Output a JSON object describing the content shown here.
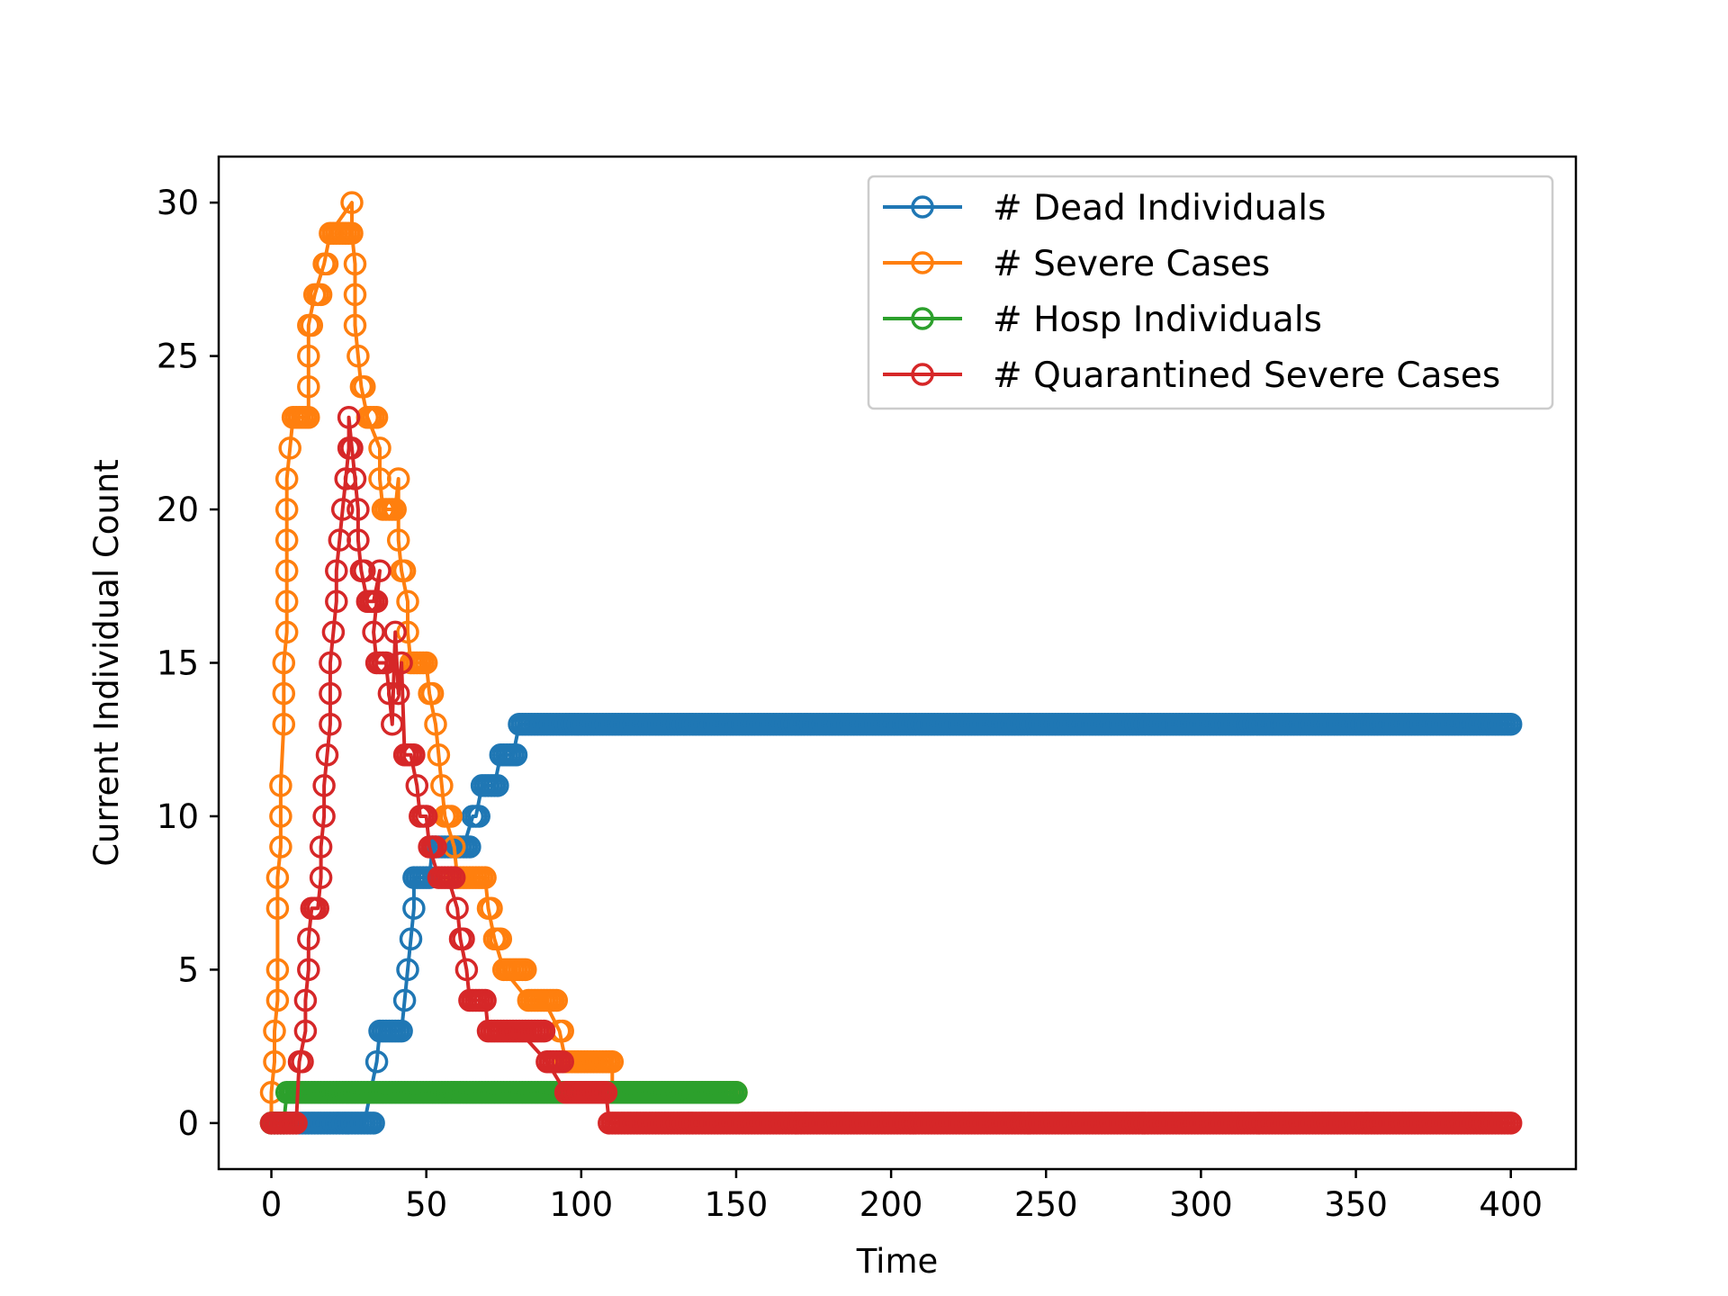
{
  "chart_data": {
    "type": "line",
    "xlabel": "Time",
    "ylabel": "Current Individual Count",
    "xlim": [
      -17,
      421
    ],
    "ylim": [
      -1.5,
      31.5
    ],
    "xticks": [
      0,
      50,
      100,
      150,
      200,
      250,
      300,
      350,
      400
    ],
    "yticks": [
      0,
      5,
      10,
      15,
      20,
      25,
      30
    ],
    "legend_position": "top-right",
    "marker": "open-circle",
    "series": [
      {
        "name": "# Dead Individuals",
        "color": "#1f77b4",
        "points": [
          [
            0,
            0
          ],
          [
            30,
            0
          ],
          [
            34,
            2
          ],
          [
            35,
            3
          ],
          [
            42,
            3
          ],
          [
            43,
            4
          ],
          [
            44,
            5
          ],
          [
            45,
            6
          ],
          [
            46,
            7
          ],
          [
            46,
            8
          ],
          [
            48,
            8
          ],
          [
            51,
            8
          ],
          [
            52,
            9
          ],
          [
            56,
            9
          ],
          [
            58,
            9
          ],
          [
            62,
            9
          ],
          [
            65,
            10
          ],
          [
            66,
            10
          ],
          [
            68,
            11
          ],
          [
            72,
            11
          ],
          [
            74,
            12
          ],
          [
            78,
            12
          ],
          [
            80,
            13
          ],
          [
            400,
            13
          ]
        ]
      },
      {
        "name": "# Severe Cases",
        "color": "#ff7f0e",
        "points": [
          [
            0,
            0
          ],
          [
            0,
            1
          ],
          [
            1,
            2
          ],
          [
            1,
            3
          ],
          [
            2,
            4
          ],
          [
            2,
            5
          ],
          [
            2,
            7
          ],
          [
            2,
            8
          ],
          [
            3,
            9
          ],
          [
            3,
            10
          ],
          [
            3,
            11
          ],
          [
            4,
            13
          ],
          [
            4,
            14
          ],
          [
            4,
            15
          ],
          [
            5,
            16
          ],
          [
            5,
            17
          ],
          [
            5,
            18
          ],
          [
            5,
            19
          ],
          [
            5,
            20
          ],
          [
            5,
            21
          ],
          [
            6,
            22
          ],
          [
            7,
            23
          ],
          [
            12,
            23
          ],
          [
            12,
            24
          ],
          [
            12,
            25
          ],
          [
            12,
            26
          ],
          [
            14,
            27
          ],
          [
            17,
            28
          ],
          [
            19,
            29
          ],
          [
            26,
            30
          ],
          [
            26,
            29
          ],
          [
            27,
            28
          ],
          [
            27,
            27
          ],
          [
            27,
            26
          ],
          [
            28,
            25
          ],
          [
            29,
            24
          ],
          [
            31,
            23
          ],
          [
            35,
            22
          ],
          [
            35,
            21
          ],
          [
            36,
            20
          ],
          [
            40,
            20
          ],
          [
            41,
            21
          ],
          [
            41,
            19
          ],
          [
            42,
            18
          ],
          [
            44,
            17
          ],
          [
            44,
            16
          ],
          [
            45,
            15
          ],
          [
            50,
            15
          ],
          [
            51,
            14
          ],
          [
            53,
            13
          ],
          [
            54,
            12
          ],
          [
            55,
            11
          ],
          [
            56,
            10
          ],
          [
            59,
            9
          ],
          [
            60,
            8
          ],
          [
            69,
            8
          ],
          [
            70,
            7
          ],
          [
            72,
            6
          ],
          [
            75,
            5
          ],
          [
            83,
            4
          ],
          [
            88,
            4
          ],
          [
            93,
            3
          ],
          [
            95,
            2
          ],
          [
            110,
            2
          ],
          [
            110,
            1
          ],
          [
            150,
            1
          ]
        ]
      },
      {
        "name": "# Hosp Individuals",
        "color": "#2ca02c",
        "points": [
          [
            0,
            0
          ],
          [
            4,
            0
          ],
          [
            5,
            1
          ],
          [
            150,
            1
          ]
        ]
      },
      {
        "name": "# Quarantined Severe Cases",
        "color": "#d62728",
        "points": [
          [
            0,
            0
          ],
          [
            8,
            0
          ],
          [
            9,
            2
          ],
          [
            11,
            3
          ],
          [
            11,
            4
          ],
          [
            12,
            5
          ],
          [
            12,
            6
          ],
          [
            13,
            7
          ],
          [
            14,
            7
          ],
          [
            15,
            7
          ],
          [
            16,
            8
          ],
          [
            16,
            9
          ],
          [
            17,
            10
          ],
          [
            17,
            11
          ],
          [
            18,
            12
          ],
          [
            19,
            13
          ],
          [
            19,
            14
          ],
          [
            19,
            15
          ],
          [
            20,
            16
          ],
          [
            21,
            17
          ],
          [
            21,
            18
          ],
          [
            22,
            19
          ],
          [
            23,
            20
          ],
          [
            24,
            21
          ],
          [
            25,
            22
          ],
          [
            25,
            23
          ],
          [
            26,
            22
          ],
          [
            27,
            21
          ],
          [
            28,
            20
          ],
          [
            28,
            19
          ],
          [
            29,
            18
          ],
          [
            31,
            17
          ],
          [
            33,
            17
          ],
          [
            35,
            18
          ],
          [
            33,
            16
          ],
          [
            34,
            15
          ],
          [
            37,
            15
          ],
          [
            38,
            14
          ],
          [
            39,
            13
          ],
          [
            40,
            16
          ],
          [
            41,
            14
          ],
          [
            42,
            15
          ],
          [
            43,
            12
          ],
          [
            45,
            12
          ],
          [
            47,
            11
          ],
          [
            48,
            10
          ],
          [
            50,
            10
          ],
          [
            51,
            9
          ],
          [
            54,
            8
          ],
          [
            57,
            8
          ],
          [
            60,
            7
          ],
          [
            61,
            6
          ],
          [
            63,
            5
          ],
          [
            64,
            4
          ],
          [
            69,
            4
          ],
          [
            70,
            3
          ],
          [
            80,
            3
          ],
          [
            89,
            2
          ],
          [
            95,
            1
          ],
          [
            100,
            1
          ],
          [
            108,
            1
          ],
          [
            109,
            0
          ],
          [
            400,
            0
          ]
        ]
      }
    ]
  }
}
